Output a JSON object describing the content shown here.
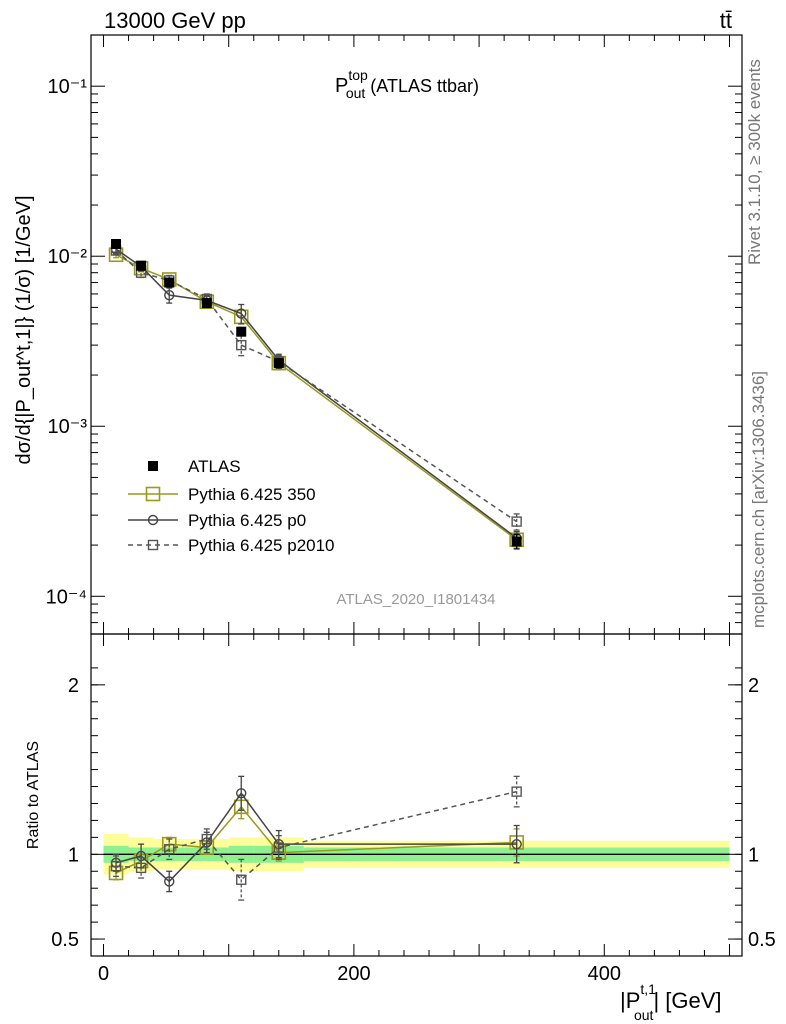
{
  "header": {
    "left": "13000 GeV pp",
    "right": "tt̄"
  },
  "side": {
    "rivet": "Rivet 3.1.10, ≥ 300k events",
    "mcplots": "mcplots.cern.ch [arXiv:1306.3436]"
  },
  "watermark": "ATLAS_2020_I1801434",
  "chart_data": [
    {
      "type": "scatter",
      "panel": "main",
      "title_main": "P",
      "title_sup": "top",
      "title_sub": "out",
      "title_suffix": " (ATLAS ttbar)",
      "ylabel": "dσ/d{|P_out^t,1|} (1/σ) [1/GeV]",
      "yscale": "log",
      "ylim": [
        6e-05,
        0.2
      ],
      "xlim": [
        -10,
        510
      ],
      "yticks": [
        "10⁻¹",
        "10⁻²",
        "10⁻³",
        "10⁻⁴"
      ],
      "series": [
        {
          "name": "ATLAS",
          "style": "data",
          "color": "#000000",
          "x": [
            10,
            30,
            52.5,
            82.5,
            110,
            140,
            330
          ],
          "y": [
            0.0118,
            0.0088,
            0.007,
            0.0053,
            0.0036,
            0.00235,
            0.00021
          ],
          "err": [
            0.0006,
            0.0005,
            0.0004,
            0.0003,
            0.0002,
            0.00015,
            2e-05
          ]
        },
        {
          "name": "Pythia 6.425 350",
          "style": "square-solid",
          "color": "#9a9a1e",
          "x": [
            10,
            30,
            52.5,
            82.5,
            110,
            140,
            330
          ],
          "y": [
            0.0102,
            0.0085,
            0.0073,
            0.0054,
            0.0044,
            0.00235,
            0.000215
          ],
          "err": [
            0.0004,
            0.0004,
            0.0004,
            0.0004,
            0.0004,
            0.0002,
            2e-05
          ]
        },
        {
          "name": "Pythia 6.425 p0",
          "style": "circle-solid",
          "color": "#444444",
          "x": [
            10,
            30,
            52.5,
            82.5,
            110,
            140,
            330
          ],
          "y": [
            0.011,
            0.0087,
            0.0059,
            0.0055,
            0.0046,
            0.00245,
            0.00022
          ],
          "err": [
            0.0005,
            0.0005,
            0.0006,
            0.0004,
            0.0006,
            0.0002,
            2e-05
          ]
        },
        {
          "name": "Pythia 6.425 p2010",
          "style": "square-dashed",
          "color": "#555555",
          "x": [
            10,
            30,
            52.5,
            82.5,
            110,
            140,
            330
          ],
          "y": [
            0.0108,
            0.008,
            0.0072,
            0.0056,
            0.003,
            0.0024,
            0.000275
          ],
          "err": [
            0.0005,
            0.0005,
            0.0005,
            0.0004,
            0.0004,
            0.0002,
            3e-05
          ]
        }
      ]
    },
    {
      "type": "scatter",
      "panel": "ratio",
      "ylabel": "Ratio to ATLAS",
      "xlabel": "|P",
      "xlabel_sup": "t,1",
      "xlabel_sub": "out",
      "xlabel_suffix": "| [GeV]",
      "ylim": [
        0.4,
        2.3
      ],
      "yticks": [
        "2",
        "1",
        "0.5"
      ],
      "xticks": [
        "0",
        "200",
        "400"
      ],
      "bands": {
        "edges": [
          0,
          20,
          40,
          65,
          100,
          120,
          160,
          500
        ],
        "yellow": [
          0.12,
          0.1,
          0.09,
          0.09,
          0.1,
          0.1,
          0.08
        ],
        "green": [
          0.05,
          0.04,
          0.04,
          0.04,
          0.05,
          0.05,
          0.04
        ]
      },
      "series": [
        {
          "name": "Pythia 6.425 350",
          "style": "square-solid",
          "color": "#9a9a1e",
          "x": [
            10,
            30,
            52.5,
            82.5,
            110,
            140,
            330
          ],
          "y": [
            0.89,
            0.96,
            1.06,
            1.04,
            1.28,
            1.01,
            1.07
          ],
          "err": [
            0.04,
            0.04,
            0.04,
            0.04,
            0.07,
            0.05,
            0.08
          ]
        },
        {
          "name": "Pythia 6.425 p0",
          "style": "circle-solid",
          "color": "#444444",
          "x": [
            10,
            30,
            52.5,
            82.5,
            110,
            140,
            330
          ],
          "y": [
            0.95,
            0.99,
            0.84,
            1.07,
            1.36,
            1.06,
            1.06
          ],
          "err": [
            0.05,
            0.07,
            0.06,
            0.06,
            0.1,
            0.08,
            0.11
          ]
        },
        {
          "name": "Pythia 6.425 p2010",
          "style": "square-dashed",
          "color": "#555555",
          "x": [
            10,
            30,
            52.5,
            82.5,
            110,
            140,
            330
          ],
          "y": [
            0.93,
            0.92,
            1.03,
            1.09,
            0.85,
            1.04,
            1.37
          ],
          "err": [
            0.06,
            0.06,
            0.06,
            0.06,
            0.12,
            0.07,
            0.09
          ]
        }
      ]
    }
  ]
}
